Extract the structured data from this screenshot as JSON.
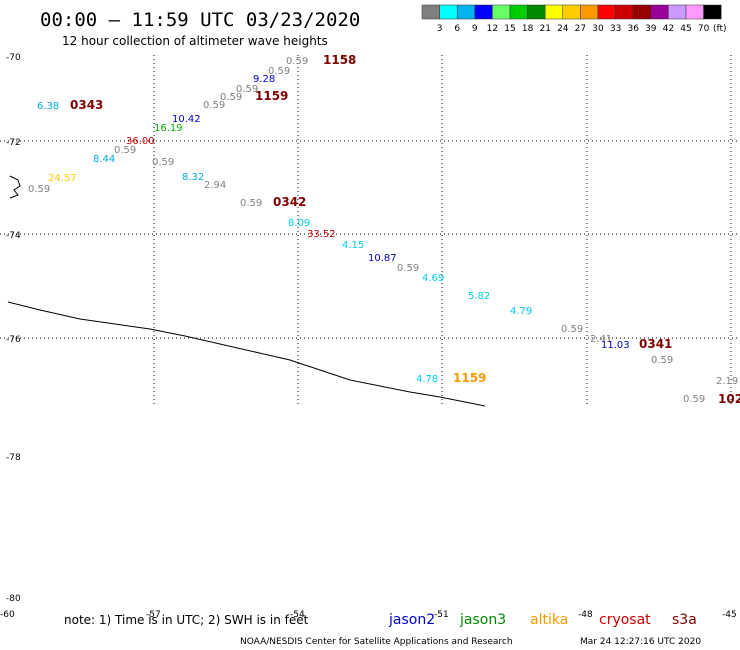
{
  "header": {
    "title": "00:00 – 11:59 UTC 03/23/2020",
    "subtitle": "12 hour collection of altimeter wave heights"
  },
  "colorbar": {
    "unit": "(ft)",
    "colors": [
      "#808080",
      "#00ffff",
      "#00b2ee",
      "#0000ff",
      "#66ff66",
      "#00cc00",
      "#008800",
      "#ffff00",
      "#ffcc00",
      "#ff9900",
      "#ff0000",
      "#cc0000",
      "#990000",
      "#990099",
      "#cc99ff",
      "#ff99ff",
      "#000000"
    ],
    "labels": [
      "3",
      "6",
      "9",
      "12",
      "15",
      "18",
      "21",
      "24",
      "27",
      "30",
      "33",
      "36",
      "39",
      "42",
      "45",
      "70"
    ]
  },
  "axes": {
    "lat_labels": [
      "-70",
      "-72",
      "-74",
      "-76",
      "-78",
      "-80"
    ],
    "lon_labels": [
      "-60",
      "-57",
      "-54",
      "-51",
      "-48",
      "-45"
    ]
  },
  "observations": [
    {
      "t": "0.59",
      "c": "#808080"
    },
    {
      "t": "1158",
      "c": "#800000"
    },
    {
      "t": "0.59",
      "c": "#808080"
    },
    {
      "t": "9.28",
      "c": "#0000cc"
    },
    {
      "t": "0.59",
      "c": "#808080"
    },
    {
      "t": "0.59",
      "c": "#808080"
    },
    {
      "t": "1159",
      "c": "#800000"
    },
    {
      "t": "0.59",
      "c": "#808080"
    },
    {
      "t": "6.38",
      "c": "#00aadd"
    },
    {
      "t": "0343",
      "c": "#800000"
    },
    {
      "t": "10.42",
      "c": "#0000cc"
    },
    {
      "t": "16.19",
      "c": "#00aa00"
    },
    {
      "t": "36.00",
      "c": "#cc0000"
    },
    {
      "t": "0.59",
      "c": "#808080"
    },
    {
      "t": "8.44",
      "c": "#00aadd"
    },
    {
      "t": "0.59",
      "c": "#808080"
    },
    {
      "t": "8.32",
      "c": "#00aadd"
    },
    {
      "t": "2.94",
      "c": "#808080"
    },
    {
      "t": "24.57",
      "c": "#ffcc00"
    },
    {
      "t": "0.59",
      "c": "#808080"
    },
    {
      "t": "0.59",
      "c": "#808080"
    },
    {
      "t": "0342",
      "c": "#800000"
    },
    {
      "t": "8.09",
      "c": "#00ccee"
    },
    {
      "t": "33.52",
      "c": "#cc0000"
    },
    {
      "t": "4.15",
      "c": "#00ccee"
    },
    {
      "t": "10.87",
      "c": "#0000cc"
    },
    {
      "t": "0.59",
      "c": "#808080"
    },
    {
      "t": "4.69",
      "c": "#00ccee"
    },
    {
      "t": "5.82",
      "c": "#00ccee"
    },
    {
      "t": "4.79",
      "c": "#00ccee"
    },
    {
      "t": "0.59",
      "c": "#808080"
    },
    {
      "t": "2.41",
      "c": "#808080"
    },
    {
      "t": "11.03",
      "c": "#0000cc"
    },
    {
      "t": "0341",
      "c": "#800000"
    },
    {
      "t": "0.59",
      "c": "#808080"
    },
    {
      "t": "4.78",
      "c": "#00ccee"
    },
    {
      "t": "1159",
      "c": "#ff9900"
    },
    {
      "t": "2.19",
      "c": "#808080"
    },
    {
      "t": "0.59",
      "c": "#808080"
    },
    {
      "t": "102",
      "c": "#800000"
    }
  ],
  "footer": {
    "note": "note:  1) Time is in UTC;  2) SWH is in feet",
    "satellites": [
      {
        "name": "jason2",
        "color": "#0000cc"
      },
      {
        "name": "jason3",
        "color": "#008800"
      },
      {
        "name": "altika",
        "color": "#ff9900"
      },
      {
        "name": "cryosat",
        "color": "#cc0000"
      },
      {
        "name": "s3a",
        "color": "#800000"
      }
    ],
    "credit": "NOAA/NESDIS Center for Satellite Applications and Research",
    "timestamp": "Mar 24 12:27:16 UTC 2020"
  }
}
